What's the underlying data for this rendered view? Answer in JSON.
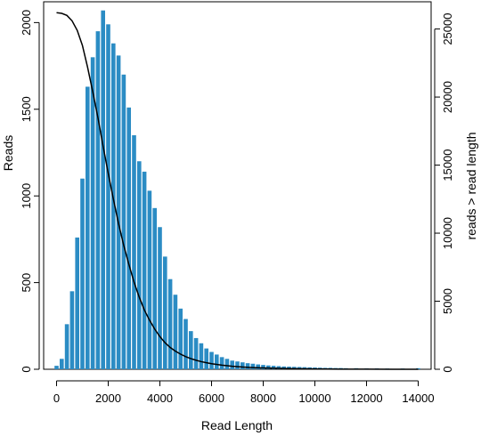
{
  "chart_data": {
    "type": "bar",
    "xlabel": "Read Length",
    "ylabel": "Reads",
    "ylabel_right": "reads > read length",
    "xlim": [
      -500,
      14500
    ],
    "ylim": [
      0,
      2120
    ],
    "y2lim": [
      0,
      27000
    ],
    "x_ticks": [
      0,
      2000,
      4000,
      6000,
      8000,
      10000,
      12000,
      14000
    ],
    "x_tick_labels": [
      "0",
      "2000",
      "4000",
      "6000",
      "8000",
      "10000",
      "12000",
      "14000"
    ],
    "y_ticks": [
      0,
      500,
      1000,
      1500,
      2000
    ],
    "y_tick_labels": [
      "0",
      "500",
      "1000",
      "1500",
      "2000"
    ],
    "y2_ticks": [
      0,
      5000,
      10000,
      15000,
      20000,
      25000
    ],
    "y2_tick_labels": [
      "0",
      "5000",
      "10000",
      "15000",
      "20000",
      "25000"
    ],
    "bar_color": "#2b8cc4",
    "line_color": "#000000",
    "bin_width": 200,
    "bars": {
      "x": [
        0,
        200,
        400,
        600,
        800,
        1000,
        1200,
        1400,
        1600,
        1800,
        2000,
        2200,
        2400,
        2600,
        2800,
        3000,
        3200,
        3400,
        3600,
        3800,
        4000,
        4200,
        4400,
        4600,
        4800,
        5000,
        5200,
        5400,
        5600,
        5800,
        6000,
        6200,
        6400,
        6600,
        6800,
        7000,
        7200,
        7400,
        7600,
        7800,
        8000,
        8200,
        8400,
        8600,
        8800,
        9000,
        9200,
        9400,
        9600,
        9800,
        10000,
        10200,
        10400,
        10600,
        10800,
        11000,
        11200,
        11600,
        12000,
        12400,
        12800,
        13400,
        14000
      ],
      "values": [
        20,
        60,
        260,
        450,
        760,
        1100,
        1630,
        1800,
        1950,
        2070,
        1990,
        1880,
        1810,
        1700,
        1510,
        1350,
        1200,
        1140,
        1030,
        930,
        820,
        650,
        520,
        430,
        350,
        290,
        220,
        180,
        150,
        120,
        100,
        85,
        70,
        60,
        50,
        45,
        40,
        35,
        32,
        28,
        25,
        22,
        20,
        18,
        16,
        15,
        14,
        13,
        12,
        11,
        10,
        9,
        8,
        8,
        7,
        7,
        6,
        6,
        5,
        5,
        4,
        4,
        6
      ]
    },
    "cumulative_line": {
      "name": "reads > read length",
      "x": [
        0,
        200,
        400,
        600,
        800,
        1000,
        1200,
        1400,
        1600,
        1800,
        2000,
        2200,
        2400,
        2600,
        2800,
        3000,
        3200,
        3400,
        3600,
        3800,
        4000,
        4200,
        4400,
        4600,
        4800,
        5000,
        5200,
        5400,
        5600,
        5800,
        6000,
        6400,
        6800,
        7200,
        7600,
        8000,
        9000,
        10000,
        11000,
        12000,
        13000,
        14000
      ],
      "values": [
        26200,
        26150,
        26000,
        25600,
        24900,
        23800,
        22200,
        20400,
        18500,
        16400,
        14400,
        12500,
        10700,
        9100,
        7700,
        6400,
        5300,
        4350,
        3600,
        2950,
        2400,
        1950,
        1600,
        1330,
        1110,
        930,
        780,
        660,
        560,
        480,
        410,
        300,
        220,
        165,
        125,
        95,
        50,
        25,
        12,
        6,
        3,
        0
      ]
    }
  }
}
